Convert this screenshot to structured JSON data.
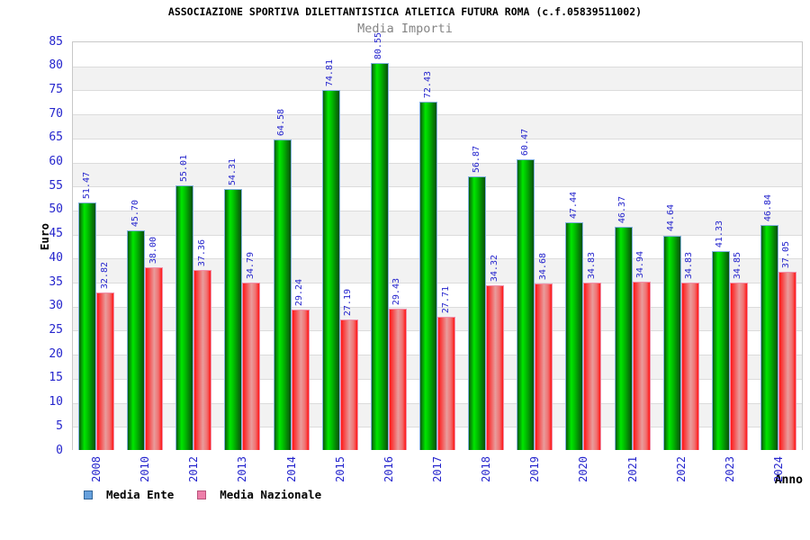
{
  "header": {
    "title": "ASSOCIAZIONE SPORTIVA DILETTANTISTICA ATLETICA FUTURA ROMA (c.f.05839511002)",
    "subtitle": "Media Importi"
  },
  "chart_data": {
    "type": "bar",
    "title": "ASSOCIAZIONE SPORTIVA DILETTANTISTICA ATLETICA FUTURA ROMA (c.f.05839511002)",
    "subtitle": "Media Importi",
    "xlabel": "Anno",
    "ylabel": "Euro",
    "ylim": [
      0,
      85
    ],
    "ytick_step": 5,
    "yticks": [
      0,
      5,
      10,
      15,
      20,
      25,
      30,
      35,
      40,
      45,
      50,
      55,
      60,
      65,
      70,
      75,
      80,
      85
    ],
    "grid": "horizontal-bands-alternating",
    "legend_position": "bottom-left",
    "categories": [
      "2008",
      "2010",
      "2012",
      "2013",
      "2014",
      "2015",
      "2016",
      "2017",
      "2018",
      "2019",
      "2020",
      "2021",
      "2022",
      "2023",
      "2024"
    ],
    "series": [
      {
        "name": "Media Ente",
        "values": [
          51.47,
          45.7,
          55.01,
          54.31,
          64.58,
          74.81,
          80.55,
          72.43,
          56.87,
          60.47,
          47.44,
          46.37,
          44.64,
          41.33,
          46.84
        ],
        "bar_gradient": [
          {
            "color": "#0b5c0b",
            "pos": "0%"
          },
          {
            "color": "#00e600",
            "pos": "32%"
          },
          {
            "color": "#00bb00",
            "pos": "55%"
          },
          {
            "color": "#0a500a",
            "pos": "100%"
          }
        ],
        "bar_stroke": "#82b1e0",
        "legend_fill": "#66a0dc",
        "legend_border": "#336699"
      },
      {
        "name": "Media Nazionale",
        "values": [
          32.82,
          38.0,
          37.36,
          34.79,
          29.24,
          27.19,
          29.43,
          27.71,
          34.32,
          34.68,
          34.83,
          34.94,
          34.83,
          34.85,
          37.05
        ],
        "bar_gradient": [
          {
            "color": "#ff1616",
            "pos": "0%"
          },
          {
            "color": "#e99c9c",
            "pos": "52%"
          },
          {
            "color": "#f07070",
            "pos": "78%"
          },
          {
            "color": "#ff1616",
            "pos": "100%"
          }
        ],
        "bar_stroke": "#f090aa",
        "legend_fill": "#ee7faa",
        "legend_border": "#b8537a"
      }
    ],
    "style": {
      "band_color_a": "#ffffff",
      "band_color_b": "#f2f2f2",
      "gridline_color": "#dcdcdc",
      "plot_border_color": "#c8c8c8",
      "value_label_color": "#2525cd",
      "tick_label_color": "#2525cd",
      "subtitle_color": "#848484"
    }
  },
  "legend": {
    "items": [
      {
        "label": "Media Ente"
      },
      {
        "label": "Media Nazionale"
      }
    ]
  }
}
